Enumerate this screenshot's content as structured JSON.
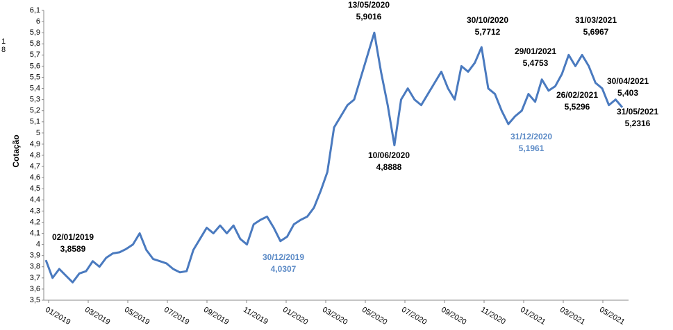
{
  "chart_data": {
    "type": "line",
    "y_label": "Cotação",
    "margin_fragments": [
      "1",
      "8"
    ],
    "series": [
      {
        "color": "#4a7abf",
        "values": [
          3.86,
          3.7,
          3.78,
          3.72,
          3.66,
          3.74,
          3.76,
          3.85,
          3.8,
          3.88,
          3.92,
          3.93,
          3.96,
          4.0,
          4.1,
          3.95,
          3.87,
          3.85,
          3.83,
          3.78,
          3.75,
          3.76,
          3.95,
          4.05,
          4.15,
          4.1,
          4.17,
          4.1,
          4.17,
          4.05,
          4.0,
          4.18,
          4.22,
          4.25,
          4.15,
          4.03,
          4.07,
          4.18,
          4.22,
          4.25,
          4.33,
          4.48,
          4.65,
          5.05,
          5.15,
          5.25,
          5.3,
          5.5,
          5.7,
          5.9,
          5.55,
          5.25,
          4.89,
          5.3,
          5.4,
          5.3,
          5.25,
          5.35,
          5.45,
          5.55,
          5.4,
          5.3,
          5.6,
          5.55,
          5.63,
          5.77,
          5.4,
          5.35,
          5.2,
          5.08,
          5.15,
          5.2,
          5.35,
          5.28,
          5.48,
          5.38,
          5.42,
          5.53,
          5.7,
          5.6,
          5.7,
          5.6,
          5.45,
          5.4,
          5.25,
          5.3,
          5.23
        ]
      }
    ],
    "ylim": [
      3.5,
      6.1
    ],
    "yticks": [
      {
        "value": 3.5,
        "label": "3,5"
      },
      {
        "value": 3.6,
        "label": "3,6"
      },
      {
        "value": 3.7,
        "label": "3,7"
      },
      {
        "value": 3.8,
        "label": "3,8"
      },
      {
        "value": 3.9,
        "label": "3,9"
      },
      4,
      {
        "value": 4.1,
        "label": "4,1"
      },
      {
        "value": 4.2,
        "label": "4,2"
      },
      {
        "value": 4.3,
        "label": "4,3"
      },
      {
        "value": 4.4,
        "label": "4,4"
      },
      {
        "value": 4.5,
        "label": "4,5"
      },
      {
        "value": 4.6,
        "label": "4,6"
      },
      {
        "value": 4.7,
        "label": "4,7"
      },
      {
        "value": 4.8,
        "label": "4,8"
      },
      {
        "value": 4.9,
        "label": "4,9"
      },
      5,
      {
        "value": 5.1,
        "label": "5,1"
      },
      {
        "value": 5.2,
        "label": "5,2"
      },
      {
        "value": 5.3,
        "label": "5,3"
      },
      {
        "value": 5.4,
        "label": "5,4"
      },
      {
        "value": 5.5,
        "label": "5,5"
      },
      {
        "value": 5.6,
        "label": "5,6"
      },
      {
        "value": 5.7,
        "label": "5,7"
      },
      {
        "value": 5.8,
        "label": "5,8"
      },
      {
        "value": 5.9,
        "label": "5,9"
      },
      6,
      {
        "value": 6.1,
        "label": "6,1"
      }
    ],
    "xticks": [
      "01/2019",
      "03/2019",
      "05/2019",
      "07/2019",
      "09/2019",
      "11/2019",
      "01/2020",
      "03/2020",
      "05/2020",
      "07/2020",
      "09/2020",
      "11/2020",
      "01/2021",
      "03/2021",
      "05/2021"
    ],
    "annotations": [
      {
        "lines": [
          "02/01/2019",
          "3,8589"
        ],
        "color": "#000000"
      },
      {
        "lines": [
          "30/12/2019",
          "4,0307"
        ],
        "color": "#5b8ac6"
      },
      {
        "lines": [
          "13/05/2020",
          "5,9016"
        ],
        "color": "#000000"
      },
      {
        "lines": [
          "10/06/2020",
          "4,8888"
        ],
        "color": "#000000"
      },
      {
        "lines": [
          "30/10/2020",
          "5,7712"
        ],
        "color": "#000000"
      },
      {
        "lines": [
          "31/12/2020",
          "5,1961"
        ],
        "color": "#5b8ac6"
      },
      {
        "lines": [
          "29/01/2021",
          "5,4753"
        ],
        "color": "#000000"
      },
      {
        "lines": [
          "26/02/2021",
          "5,5296"
        ],
        "color": "#000000"
      },
      {
        "lines": [
          "31/03/2021",
          "5,6967"
        ],
        "color": "#000000"
      },
      {
        "lines": [
          "30/04/2021",
          "5,403"
        ],
        "color": "#000000"
      },
      {
        "lines": [
          "31/05/2021",
          "5,2316"
        ],
        "color": "#000000"
      }
    ]
  }
}
